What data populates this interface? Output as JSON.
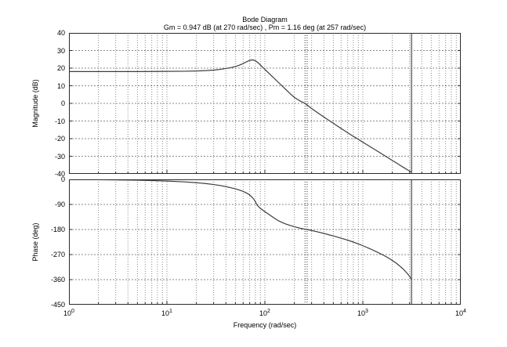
{
  "figure": {
    "title": "Bode Diagram",
    "subtitle": "Gm = 0.947 dB (at 270 rad/sec) ,  Pm = 1.16 deg (at 257 rad/sec)",
    "xlabel": "Frequency (rad/sec)"
  },
  "annotations": {
    "gain_margin_db": 0.947,
    "gain_margin_freq_rad_s": 270,
    "phase_margin_deg": 1.16,
    "phase_margin_freq_rad_s": 257
  },
  "colors": {
    "background": "#ffffff",
    "axis": "#2a2a2a",
    "grid": "#8a8a8a",
    "curve": "#3c3c3c",
    "marker_line": "#333333",
    "nyquist_line": "#888888",
    "text": "#000000"
  },
  "chart_data": [
    {
      "type": "line",
      "name": "magnitude",
      "title": "Bode Diagram",
      "ylabel": "Magnitude (dB)",
      "ylim": [
        -40,
        40
      ],
      "yticks": [
        40,
        30,
        20,
        10,
        0,
        -10,
        -20,
        -30,
        -40
      ],
      "ygrid": [
        30,
        20,
        10,
        0,
        -10,
        -20,
        -30
      ],
      "xscale": "log",
      "xlim": [
        1,
        10000
      ],
      "xtick_labels": [
        "10^0",
        "10^1",
        "10^2",
        "10^3",
        "10^4"
      ],
      "grid": true,
      "vlines": [
        {
          "name": "phase-margin-freq-marker",
          "x": 257,
          "style": "dotted",
          "color": "#333333"
        },
        {
          "name": "gain-margin-freq-marker",
          "x": 270,
          "style": "dotted",
          "color": "#333333"
        },
        {
          "name": "nyquist-frequency-line",
          "x": 3141.6,
          "style": "solid",
          "color": "#888888"
        }
      ],
      "series": [
        {
          "name": "open-loop-magnitude",
          "color": "#3c3c3c",
          "points": [
            [
              1,
              18.05
            ],
            [
              1.5,
              18.05
            ],
            [
              2,
              18.05
            ],
            [
              3,
              18.05
            ],
            [
              4,
              18.05
            ],
            [
              5,
              18.05
            ],
            [
              7,
              18.1
            ],
            [
              10,
              18.15
            ],
            [
              15,
              18.25
            ],
            [
              20,
              18.4
            ],
            [
              25,
              18.6
            ],
            [
              30,
              18.9
            ],
            [
              35,
              19.3
            ],
            [
              40,
              19.8
            ],
            [
              45,
              20.3
            ],
            [
              50,
              20.9
            ],
            [
              55,
              21.7
            ],
            [
              60,
              22.6
            ],
            [
              65,
              23.6
            ],
            [
              70,
              24.4
            ],
            [
              75,
              24.7
            ],
            [
              80,
              24.2
            ],
            [
              85,
              23.1
            ],
            [
              90,
              21.8
            ],
            [
              95,
              20.5
            ],
            [
              100,
              19.3
            ],
            [
              110,
              17.1
            ],
            [
              120,
              15.1
            ],
            [
              140,
              11.5
            ],
            [
              160,
              8.4
            ],
            [
              180,
              5.7
            ],
            [
              200,
              3.4
            ],
            [
              230,
              1.3
            ],
            [
              257,
              0
            ],
            [
              270,
              -0.95
            ],
            [
              300,
              -2.9
            ],
            [
              350,
              -5.5
            ],
            [
              400,
              -7.7
            ],
            [
              450,
              -9.6
            ],
            [
              500,
              -11.3
            ],
            [
              600,
              -14.2
            ],
            [
              700,
              -16.6
            ],
            [
              800,
              -18.7
            ],
            [
              900,
              -20.4
            ],
            [
              1000,
              -22
            ],
            [
              1200,
              -24.7
            ],
            [
              1400,
              -27
            ],
            [
              1600,
              -29
            ],
            [
              1800,
              -30.8
            ],
            [
              2000,
              -32.4
            ],
            [
              2200,
              -33.8
            ],
            [
              2400,
              -35.1
            ],
            [
              2600,
              -36.3
            ],
            [
              2800,
              -37.4
            ],
            [
              3000,
              -38.4
            ],
            [
              3141.6,
              -38.9
            ]
          ]
        }
      ]
    },
    {
      "type": "line",
      "name": "phase",
      "ylabel": "Phase (deg)",
      "xlabel": "Frequency (rad/sec)",
      "ylim": [
        -450,
        0
      ],
      "yticks": [
        0,
        -90,
        -180,
        -270,
        -360,
        -450
      ],
      "ygrid": [
        -90,
        -180,
        -270,
        -360
      ],
      "xscale": "log",
      "xlim": [
        1,
        10000
      ],
      "xtick_labels": [
        "10^0",
        "10^1",
        "10^2",
        "10^3",
        "10^4"
      ],
      "grid": true,
      "vlines": [
        {
          "name": "phase-margin-freq-marker",
          "x": 257,
          "style": "dotted",
          "color": "#333333"
        },
        {
          "name": "gain-margin-freq-marker",
          "x": 270,
          "style": "dotted",
          "color": "#333333"
        },
        {
          "name": "nyquist-frequency-line",
          "x": 3141.6,
          "style": "solid",
          "color": "#888888"
        }
      ],
      "series": [
        {
          "name": "open-loop-phase",
          "color": "#3c3c3c",
          "points": [
            [
              1,
              -0.6
            ],
            [
              2,
              -1.2
            ],
            [
              3,
              -1.8
            ],
            [
              5,
              -3
            ],
            [
              7,
              -4.2
            ],
            [
              10,
              -6
            ],
            [
              15,
              -9
            ],
            [
              20,
              -12
            ],
            [
              25,
              -15.2
            ],
            [
              30,
              -18.5
            ],
            [
              35,
              -22
            ],
            [
              40,
              -26
            ],
            [
              45,
              -30
            ],
            [
              50,
              -34
            ],
            [
              55,
              -38.5
            ],
            [
              60,
              -43
            ],
            [
              65,
              -49
            ],
            [
              70,
              -56
            ],
            [
              75,
              -66
            ],
            [
              78,
              -74
            ],
            [
              80,
              -80
            ],
            [
              82,
              -88
            ],
            [
              85,
              -96
            ],
            [
              90,
              -104
            ],
            [
              95,
              -110
            ],
            [
              100,
              -116
            ],
            [
              110,
              -126
            ],
            [
              120,
              -135
            ],
            [
              130,
              -143
            ],
            [
              140,
              -150
            ],
            [
              160,
              -159
            ],
            [
              180,
              -165
            ],
            [
              200,
              -170
            ],
            [
              230,
              -175.5
            ],
            [
              257,
              -178.8
            ],
            [
              270,
              -180
            ],
            [
              300,
              -183.5
            ],
            [
              350,
              -189
            ],
            [
              400,
              -194
            ],
            [
              450,
              -199
            ],
            [
              500,
              -203
            ],
            [
              600,
              -211
            ],
            [
              700,
              -218
            ],
            [
              800,
              -225
            ],
            [
              900,
              -232
            ],
            [
              1000,
              -238
            ],
            [
              1200,
              -250
            ],
            [
              1400,
              -261
            ],
            [
              1600,
              -271
            ],
            [
              1800,
              -281
            ],
            [
              2000,
              -291
            ],
            [
              2200,
              -301
            ],
            [
              2400,
              -312
            ],
            [
              2600,
              -323
            ],
            [
              2800,
              -335
            ],
            [
              3000,
              -348
            ],
            [
              3141.6,
              -360
            ]
          ]
        }
      ]
    }
  ]
}
